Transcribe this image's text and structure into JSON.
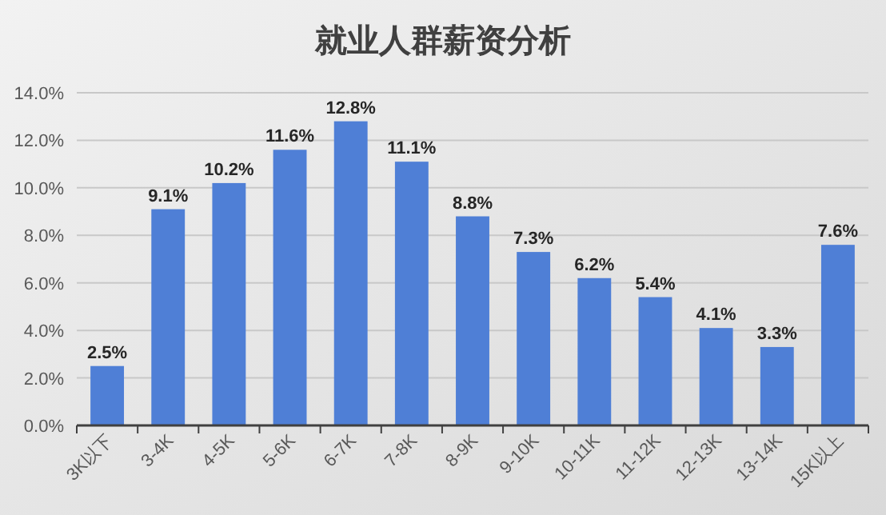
{
  "chart_data": {
    "type": "bar",
    "title": "就业人群薪资分析",
    "categories": [
      "3K以下",
      "3-4K",
      "4-5K",
      "5-6K",
      "6-7K",
      "7-8K",
      "8-9K",
      "9-10K",
      "10-11K",
      "11-12K",
      "12-13K",
      "13-14K",
      "15K以上"
    ],
    "values": [
      2.5,
      9.1,
      10.2,
      11.6,
      12.8,
      11.1,
      8.8,
      7.3,
      6.2,
      5.4,
      4.1,
      3.3,
      7.6
    ],
    "value_labels": [
      "2.5%",
      "9.1%",
      "10.2%",
      "11.6%",
      "12.8%",
      "11.1%",
      "8.8%",
      "7.3%",
      "6.2%",
      "5.4%",
      "4.1%",
      "3.3%",
      "7.6%"
    ],
    "color": "#4f7fd6",
    "ylim": [
      0,
      14
    ],
    "yticks": [
      {
        "value": 0,
        "label": "0.0%"
      },
      {
        "value": 2,
        "label": "2.0%"
      },
      {
        "value": 4,
        "label": "4.0%"
      },
      {
        "value": 6,
        "label": "6.0%"
      },
      {
        "value": 8,
        "label": "8.0%"
      },
      {
        "value": 10,
        "label": "10.0%"
      },
      {
        "value": 12,
        "label": "12.0%"
      },
      {
        "value": 14,
        "label": "14.0%"
      }
    ],
    "grid": "y"
  }
}
